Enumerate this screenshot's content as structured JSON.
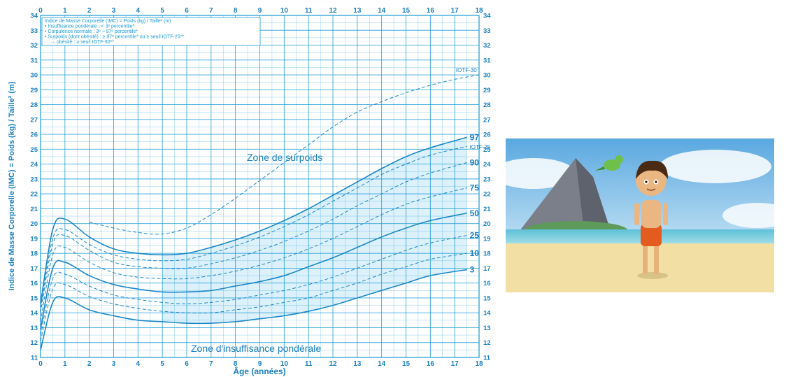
{
  "chart_data": {
    "type": "line",
    "title": "",
    "xlabel": "Âge (années)",
    "ylabel": "Indice de Masse Corporelle (IMC) = Poids (kg) / Taille² (m)",
    "xlim": [
      0,
      18
    ],
    "ylim": [
      11,
      34
    ],
    "x_ticks": [
      "0",
      "1",
      "2",
      "3",
      "4",
      "5",
      "6",
      "7",
      "8",
      "9",
      "10",
      "11",
      "12",
      "13",
      "14",
      "15",
      "16",
      "17",
      "18"
    ],
    "y_ticks": [
      "11",
      "12",
      "13",
      "14",
      "15",
      "16",
      "17",
      "18",
      "19",
      "20",
      "21",
      "22",
      "23",
      "24",
      "25",
      "26",
      "27",
      "28",
      "29",
      "30",
      "31",
      "32",
      "33",
      "34"
    ],
    "grid": true,
    "colors": {
      "ink": "#1a9ad6",
      "line": "#1e88c8",
      "zone": "#bfe6f8",
      "background": "#ffffff"
    },
    "legend_lines": [
      "Indice de Masse Corporelle (IMC) = Poids (kg) / Taille² (m)",
      "• Insuffisance pondérale : < 3ᵉ percentile*",
      "• Corpulence normale : 3ᵉ – 97ᵉ percentile*",
      "• Surpoids (dont obésité) : ≥ 97ᵉ percentile* ou ≥ seuil IOTF-25**",
      "→ obésité : ≥ seuil IOTF-30**"
    ],
    "annotations": {
      "overweight_zone": "Zone de surpoids",
      "underweight_zone": "Zone d'insuffisance pondérale"
    },
    "series": [
      {
        "name": "97",
        "style": "solid",
        "x": [
          0,
          0.5,
          1,
          2,
          3,
          4,
          5,
          6,
          7,
          8,
          9,
          10,
          11,
          12,
          13,
          14,
          15,
          16,
          17.5
        ],
        "y": [
          14.6,
          19.6,
          20.3,
          19.1,
          18.3,
          18.0,
          17.9,
          18.0,
          18.4,
          18.9,
          19.5,
          20.2,
          21.0,
          21.9,
          22.8,
          23.7,
          24.5,
          25.1,
          25.8
        ]
      },
      {
        "name": "IOTF-25",
        "style": "dashed",
        "x": [
          0,
          0.5,
          1,
          2,
          3,
          4,
          5,
          6,
          7,
          8,
          9,
          10,
          11,
          12,
          13,
          14,
          15,
          16,
          17.5
        ],
        "y": [
          14.3,
          19.0,
          19.6,
          18.6,
          17.9,
          17.6,
          17.5,
          17.6,
          18.0,
          18.5,
          19.1,
          19.8,
          20.6,
          21.5,
          22.4,
          23.3,
          24.0,
          24.6,
          25.2
        ]
      },
      {
        "name": "90",
        "style": "dashed",
        "x": [
          0,
          0.5,
          1,
          2,
          3,
          4,
          5,
          6,
          7,
          8,
          9,
          10,
          11,
          12,
          13,
          14,
          15,
          16,
          17.5
        ],
        "y": [
          14.0,
          18.6,
          19.2,
          18.2,
          17.4,
          17.1,
          17.0,
          17.0,
          17.3,
          17.7,
          18.2,
          18.8,
          19.5,
          20.3,
          21.2,
          22.0,
          22.8,
          23.4,
          24.1
        ]
      },
      {
        "name": "75",
        "style": "dashed",
        "x": [
          0,
          0.5,
          1,
          2,
          3,
          4,
          5,
          6,
          7,
          8,
          9,
          10,
          11,
          12,
          13,
          14,
          15,
          16,
          17.5
        ],
        "y": [
          13.4,
          17.9,
          18.4,
          17.4,
          16.7,
          16.4,
          16.3,
          16.3,
          16.5,
          16.8,
          17.2,
          17.7,
          18.3,
          19.0,
          19.8,
          20.6,
          21.3,
          21.8,
          22.4
        ]
      },
      {
        "name": "50",
        "style": "solid",
        "x": [
          0,
          0.5,
          1,
          2,
          3,
          4,
          5,
          6,
          7,
          8,
          9,
          10,
          11,
          12,
          13,
          14,
          15,
          16,
          17.5
        ],
        "y": [
          12.9,
          17.0,
          17.4,
          16.5,
          15.9,
          15.6,
          15.4,
          15.4,
          15.5,
          15.8,
          16.1,
          16.5,
          17.1,
          17.7,
          18.4,
          19.1,
          19.7,
          20.2,
          20.7
        ]
      },
      {
        "name": "25",
        "style": "dashed",
        "x": [
          0,
          0.5,
          1,
          2,
          3,
          4,
          5,
          6,
          7,
          8,
          9,
          10,
          11,
          12,
          13,
          14,
          15,
          16,
          17.5
        ],
        "y": [
          12.5,
          16.3,
          16.6,
          15.8,
          15.2,
          14.9,
          14.7,
          14.6,
          14.7,
          14.9,
          15.2,
          15.5,
          15.9,
          16.4,
          17.0,
          17.6,
          18.2,
          18.7,
          19.2
        ]
      },
      {
        "name": "10",
        "style": "dashed",
        "x": [
          0,
          0.5,
          1,
          2,
          3,
          4,
          5,
          6,
          7,
          8,
          9,
          10,
          11,
          12,
          13,
          14,
          15,
          16,
          17.5
        ],
        "y": [
          12.1,
          15.6,
          15.9,
          15.1,
          14.6,
          14.3,
          14.1,
          14.0,
          14.0,
          14.2,
          14.4,
          14.7,
          15.0,
          15.5,
          16.0,
          16.6,
          17.1,
          17.6,
          18.0
        ]
      },
      {
        "name": "3",
        "style": "solid",
        "x": [
          0,
          0.5,
          1,
          2,
          3,
          4,
          5,
          6,
          7,
          8,
          9,
          10,
          11,
          12,
          13,
          14,
          15,
          16,
          17.5
        ],
        "y": [
          11.5,
          14.7,
          15.0,
          14.2,
          13.8,
          13.5,
          13.4,
          13.3,
          13.3,
          13.4,
          13.6,
          13.8,
          14.1,
          14.5,
          15.0,
          15.5,
          16.0,
          16.5,
          16.9
        ]
      },
      {
        "name": "IOTF-30",
        "style": "dashed",
        "x": [
          2,
          3,
          4,
          5,
          6,
          7,
          8,
          9,
          10,
          11,
          12,
          13,
          14,
          15,
          16,
          17,
          18
        ],
        "y": [
          20.1,
          19.7,
          19.4,
          19.3,
          19.7,
          20.6,
          21.7,
          22.9,
          24.1,
          25.3,
          26.5,
          27.5,
          28.2,
          28.8,
          29.3,
          29.7,
          30.0
        ]
      }
    ]
  }
}
